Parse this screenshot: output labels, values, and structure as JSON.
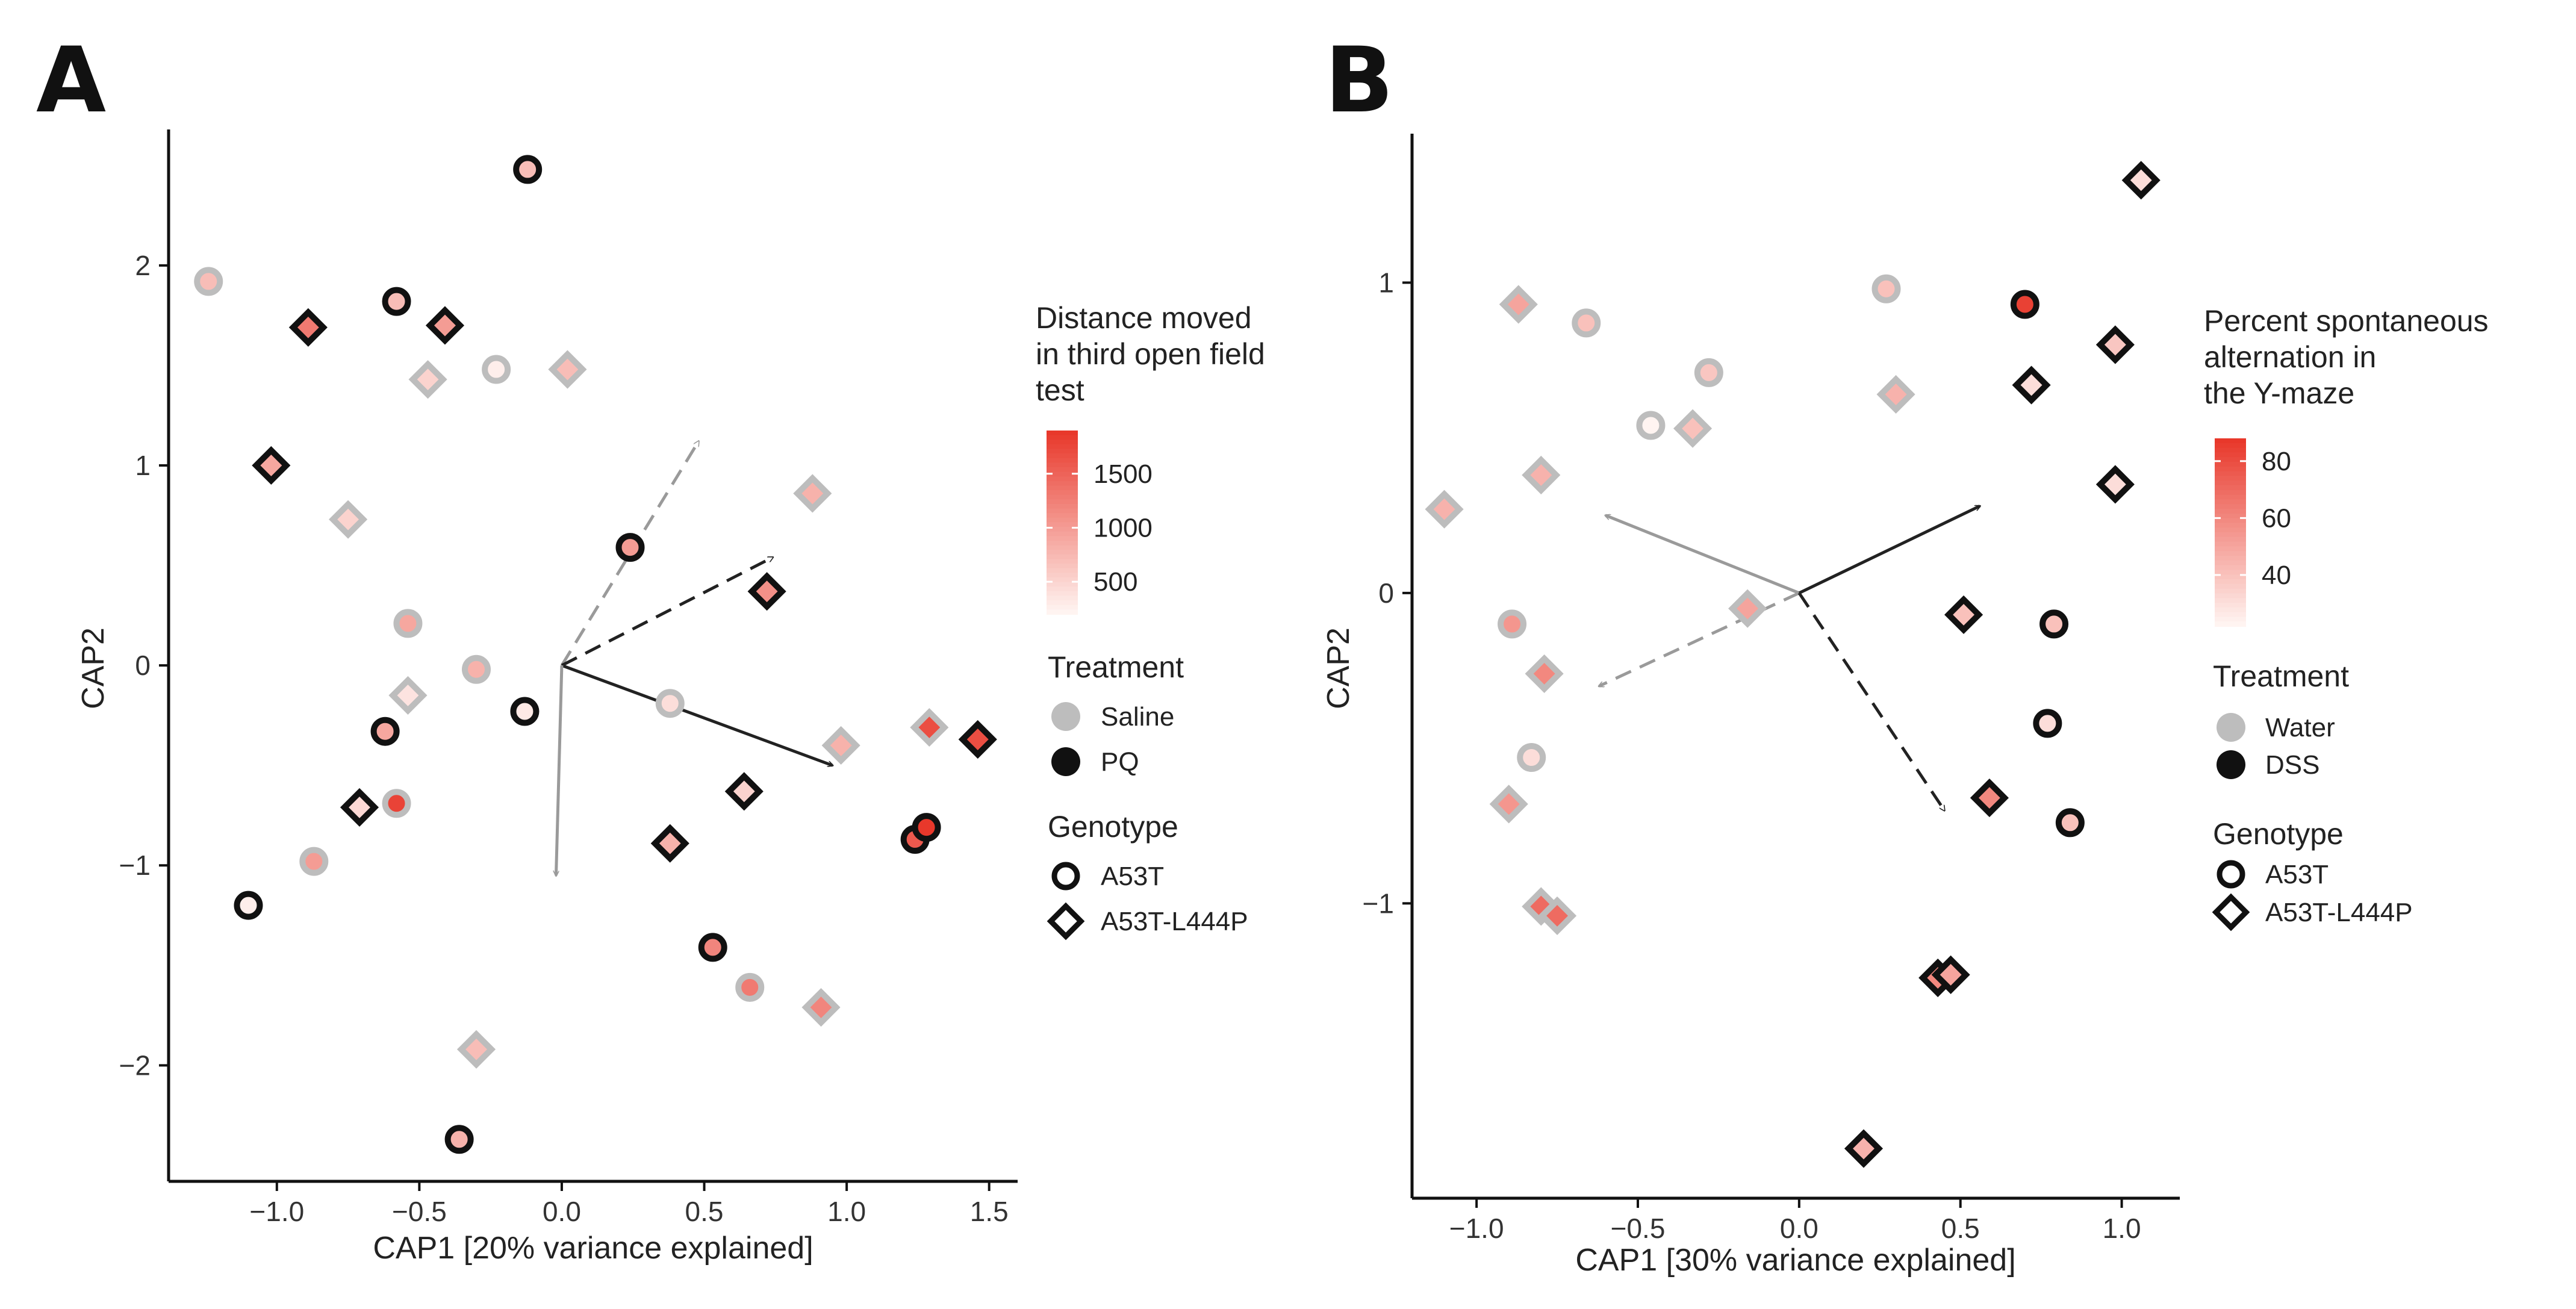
{
  "colors": {
    "saline_or_water": "#bdbdbd",
    "pq_or_dss": "#111111",
    "fill_low": "#fff4f1",
    "fill_high": "#e8382b",
    "axis": "#111111",
    "arrow_dark": "#222222",
    "arrow_gray": "#9a9a9a"
  },
  "chart_data": [
    {
      "type": "scatter",
      "panel_label": "A",
      "xlabel": "CAP1 [20% variance explained]",
      "ylabel": "CAP2",
      "xlim": [
        -1.38,
        1.6
      ],
      "ylim": [
        -2.58,
        2.68
      ],
      "xticks": [
        -1.0,
        -0.5,
        0.0,
        0.5,
        1.0,
        1.5
      ],
      "xtick_labels": [
        "-1.0",
        "-0.5",
        "0.0",
        "0.5",
        "1.0",
        "1.5"
      ],
      "yticks": [
        -2,
        -1,
        0,
        1,
        2
      ],
      "ytick_labels": [
        "-2",
        "-1",
        "0",
        "1",
        "2"
      ],
      "color_legend": {
        "title_lines": [
          "Distance moved",
          "in third open field",
          "test"
        ],
        "min": 200,
        "max": 1900,
        "ticks": [
          500,
          1000,
          1500
        ],
        "tick_labels": [
          "500",
          "1000",
          "1500"
        ]
      },
      "treatment_legend": {
        "title": "Treatment",
        "labels": [
          "Saline",
          "PQ"
        ]
      },
      "genotype_legend": {
        "title": "Genotype",
        "labels": [
          "A53T",
          "A53T-L444P"
        ]
      },
      "points": [
        {
          "x": -0.12,
          "y": 2.48,
          "treatment": "PQ",
          "genotype": "A53T",
          "value": 700
        },
        {
          "x": -1.24,
          "y": 1.92,
          "treatment": "Saline",
          "genotype": "A53T",
          "value": 700
        },
        {
          "x": -0.58,
          "y": 1.82,
          "treatment": "PQ",
          "genotype": "A53T",
          "value": 700
        },
        {
          "x": -0.89,
          "y": 1.69,
          "treatment": "PQ",
          "genotype": "A53T-L444P",
          "value": 1300
        },
        {
          "x": -0.41,
          "y": 1.7,
          "treatment": "PQ",
          "genotype": "A53T-L444P",
          "value": 1000
        },
        {
          "x": -0.47,
          "y": 1.43,
          "treatment": "Saline",
          "genotype": "A53T-L444P",
          "value": 500
        },
        {
          "x": -0.23,
          "y": 1.48,
          "treatment": "Saline",
          "genotype": "A53T",
          "value": 250
        },
        {
          "x": 0.02,
          "y": 1.48,
          "treatment": "Saline",
          "genotype": "A53T-L444P",
          "value": 700
        },
        {
          "x": -1.02,
          "y": 1.0,
          "treatment": "PQ",
          "genotype": "A53T-L444P",
          "value": 900
        },
        {
          "x": -0.75,
          "y": 0.73,
          "treatment": "Saline",
          "genotype": "A53T-L444P",
          "value": 500
        },
        {
          "x": 0.88,
          "y": 0.86,
          "treatment": "Saline",
          "genotype": "A53T-L444P",
          "value": 800
        },
        {
          "x": 0.24,
          "y": 0.59,
          "treatment": "PQ",
          "genotype": "A53T",
          "value": 1000
        },
        {
          "x": 0.72,
          "y": 0.37,
          "treatment": "PQ",
          "genotype": "A53T-L444P",
          "value": 1100
        },
        {
          "x": -0.54,
          "y": 0.21,
          "treatment": "Saline",
          "genotype": "A53T",
          "value": 900
        },
        {
          "x": -0.54,
          "y": -0.15,
          "treatment": "Saline",
          "genotype": "A53T-L444P",
          "value": 350
        },
        {
          "x": -0.3,
          "y": -0.02,
          "treatment": "Saline",
          "genotype": "A53T",
          "value": 800
        },
        {
          "x": -0.62,
          "y": -0.33,
          "treatment": "PQ",
          "genotype": "A53T",
          "value": 900
        },
        {
          "x": -0.13,
          "y": -0.23,
          "treatment": "PQ",
          "genotype": "A53T",
          "value": 300
        },
        {
          "x": 0.38,
          "y": -0.19,
          "treatment": "Saline",
          "genotype": "A53T",
          "value": 400
        },
        {
          "x": 0.98,
          "y": -0.4,
          "treatment": "Saline",
          "genotype": "A53T-L444P",
          "value": 800
        },
        {
          "x": 1.29,
          "y": -0.31,
          "treatment": "Saline",
          "genotype": "A53T-L444P",
          "value": 1700
        },
        {
          "x": 1.46,
          "y": -0.37,
          "treatment": "PQ",
          "genotype": "A53T-L444P",
          "value": 1700
        },
        {
          "x": -0.58,
          "y": -0.69,
          "treatment": "Saline",
          "genotype": "A53T",
          "value": 1800
        },
        {
          "x": -0.71,
          "y": -0.71,
          "treatment": "PQ",
          "genotype": "A53T-L444P",
          "value": 450
        },
        {
          "x": 0.64,
          "y": -0.63,
          "treatment": "PQ",
          "genotype": "A53T-L444P",
          "value": 500
        },
        {
          "x": 0.38,
          "y": -0.89,
          "treatment": "PQ",
          "genotype": "A53T-L444P",
          "value": 800
        },
        {
          "x": -0.87,
          "y": -0.98,
          "treatment": "Saline",
          "genotype": "A53T",
          "value": 1000
        },
        {
          "x": 1.24,
          "y": -0.87,
          "treatment": "PQ",
          "genotype": "A53T",
          "value": 1600
        },
        {
          "x": 1.28,
          "y": -0.81,
          "treatment": "PQ",
          "genotype": "A53T",
          "value": 1900
        },
        {
          "x": -1.1,
          "y": -1.2,
          "treatment": "PQ",
          "genotype": "A53T",
          "value": 250
        },
        {
          "x": 0.53,
          "y": -1.41,
          "treatment": "PQ",
          "genotype": "A53T",
          "value": 1200
        },
        {
          "x": 0.66,
          "y": -1.61,
          "treatment": "Saline",
          "genotype": "A53T",
          "value": 1300
        },
        {
          "x": 0.91,
          "y": -1.71,
          "treatment": "Saline",
          "genotype": "A53T-L444P",
          "value": 1200
        },
        {
          "x": -0.3,
          "y": -1.92,
          "treatment": "Saline",
          "genotype": "A53T-L444P",
          "value": 700
        },
        {
          "x": -0.36,
          "y": -2.37,
          "treatment": "PQ",
          "genotype": "A53T",
          "value": 800
        }
      ],
      "arrows": [
        {
          "x2": 0.48,
          "y2": 1.12,
          "style": "dashed",
          "color": "gray"
        },
        {
          "x2": 0.74,
          "y2": 0.54,
          "style": "dashed",
          "color": "dark"
        },
        {
          "x2": 0.95,
          "y2": -0.5,
          "style": "solid",
          "color": "dark"
        },
        {
          "x2": -0.02,
          "y2": -1.05,
          "style": "solid",
          "color": "gray"
        }
      ]
    },
    {
      "type": "scatter",
      "panel_label": "B",
      "xlabel": "CAP1 [30% variance explained]",
      "ylabel": "CAP2",
      "xlim": [
        -1.2,
        1.18
      ],
      "ylim": [
        -1.95,
        1.48
      ],
      "xticks": [
        -1.0,
        -0.5,
        0.0,
        0.5,
        1.0
      ],
      "xtick_labels": [
        "-1.0",
        "-0.5",
        "0.0",
        "0.5",
        "1.0"
      ],
      "yticks": [
        -1,
        0,
        1
      ],
      "ytick_labels": [
        "-1",
        "0",
        "1"
      ],
      "color_legend": {
        "title_lines": [
          "Percent spontaneous",
          "alternation in",
          "the Y-maze"
        ],
        "min": 22,
        "max": 88,
        "ticks": [
          40,
          60,
          80
        ],
        "tick_labels": [
          "40",
          "60",
          "80"
        ]
      },
      "treatment_legend": {
        "title": "Treatment",
        "labels": [
          "Water",
          "DSS"
        ]
      },
      "genotype_legend": {
        "title": "Genotype",
        "labels": [
          "A53T",
          "A53T-L444P"
        ]
      },
      "points": [
        {
          "x": 1.06,
          "y": 1.33,
          "treatment": "DSS",
          "genotype": "A53T-L444P",
          "value": 30
        },
        {
          "x": 0.7,
          "y": 0.93,
          "treatment": "DSS",
          "genotype": "A53T",
          "value": 85
        },
        {
          "x": -0.87,
          "y": 0.93,
          "treatment": "Water",
          "genotype": "A53T-L444P",
          "value": 50
        },
        {
          "x": -0.66,
          "y": 0.87,
          "treatment": "Water",
          "genotype": "A53T",
          "value": 40
        },
        {
          "x": 0.27,
          "y": 0.98,
          "treatment": "Water",
          "genotype": "A53T",
          "value": 40
        },
        {
          "x": 0.98,
          "y": 0.8,
          "treatment": "DSS",
          "genotype": "A53T-L444P",
          "value": 38
        },
        {
          "x": -0.28,
          "y": 0.71,
          "treatment": "Water",
          "genotype": "A53T",
          "value": 38
        },
        {
          "x": 0.72,
          "y": 0.67,
          "treatment": "DSS",
          "genotype": "A53T-L444P",
          "value": 30
        },
        {
          "x": 0.3,
          "y": 0.64,
          "treatment": "Water",
          "genotype": "A53T-L444P",
          "value": 45
        },
        {
          "x": -0.46,
          "y": 0.54,
          "treatment": "Water",
          "genotype": "A53T",
          "value": 22
        },
        {
          "x": -0.33,
          "y": 0.53,
          "treatment": "Water",
          "genotype": "A53T-L444P",
          "value": 40
        },
        {
          "x": -0.8,
          "y": 0.38,
          "treatment": "Water",
          "genotype": "A53T-L444P",
          "value": 45
        },
        {
          "x": 0.98,
          "y": 0.35,
          "treatment": "DSS",
          "genotype": "A53T-L444P",
          "value": 30
        },
        {
          "x": -1.1,
          "y": 0.27,
          "treatment": "Water",
          "genotype": "A53T-L444P",
          "value": 45
        },
        {
          "x": -0.16,
          "y": -0.05,
          "treatment": "Water",
          "genotype": "A53T-L444P",
          "value": 50
        },
        {
          "x": -0.89,
          "y": -0.1,
          "treatment": "Water",
          "genotype": "A53T",
          "value": 55
        },
        {
          "x": 0.51,
          "y": -0.07,
          "treatment": "DSS",
          "genotype": "A53T-L444P",
          "value": 40
        },
        {
          "x": 0.79,
          "y": -0.1,
          "treatment": "DSS",
          "genotype": "A53T",
          "value": 40
        },
        {
          "x": -0.79,
          "y": -0.26,
          "treatment": "Water",
          "genotype": "A53T-L444P",
          "value": 60
        },
        {
          "x": 0.77,
          "y": -0.42,
          "treatment": "DSS",
          "genotype": "A53T",
          "value": 30
        },
        {
          "x": -0.83,
          "y": -0.53,
          "treatment": "Water",
          "genotype": "A53T",
          "value": 30
        },
        {
          "x": 0.59,
          "y": -0.66,
          "treatment": "DSS",
          "genotype": "A53T-L444P",
          "value": 60
        },
        {
          "x": -0.9,
          "y": -0.68,
          "treatment": "Water",
          "genotype": "A53T-L444P",
          "value": 55
        },
        {
          "x": 0.84,
          "y": -0.74,
          "treatment": "DSS",
          "genotype": "A53T",
          "value": 40
        },
        {
          "x": -0.8,
          "y": -1.01,
          "treatment": "Water",
          "genotype": "A53T-L444P",
          "value": 70
        },
        {
          "x": -0.75,
          "y": -1.04,
          "treatment": "Water",
          "genotype": "A53T-L444P",
          "value": 70
        },
        {
          "x": 0.43,
          "y": -1.24,
          "treatment": "DSS",
          "genotype": "A53T-L444P",
          "value": 60
        },
        {
          "x": 0.47,
          "y": -1.23,
          "treatment": "DSS",
          "genotype": "A53T-L444P",
          "value": 50
        },
        {
          "x": 0.2,
          "y": -1.79,
          "treatment": "DSS",
          "genotype": "A53T-L444P",
          "value": 45
        }
      ],
      "arrows": [
        {
          "x2": -0.6,
          "y2": 0.25,
          "style": "solid",
          "color": "gray"
        },
        {
          "x2": 0.56,
          "y2": 0.28,
          "style": "solid",
          "color": "dark"
        },
        {
          "x2": -0.62,
          "y2": -0.3,
          "style": "dashed",
          "color": "gray"
        },
        {
          "x2": 0.45,
          "y2": -0.7,
          "style": "dashed",
          "color": "dark"
        }
      ]
    }
  ]
}
